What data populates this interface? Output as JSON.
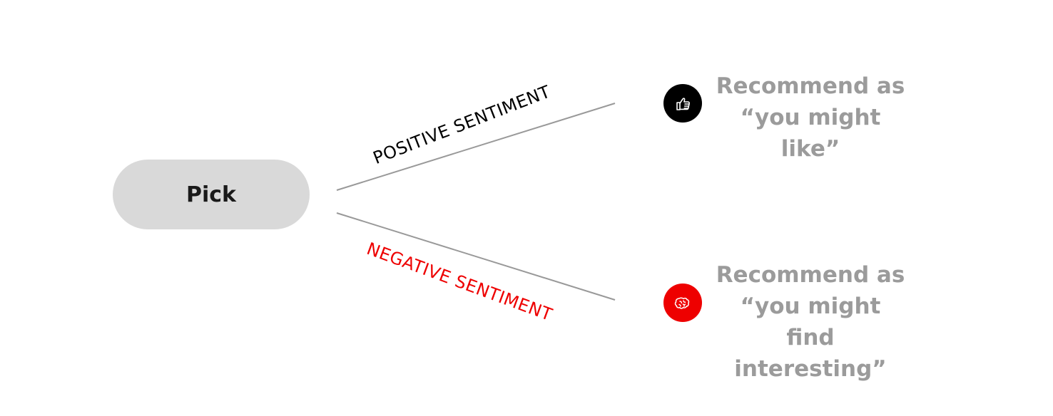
{
  "colors": {
    "pill_bg": "#d9d9d9",
    "pill_text": "#1a1a1a",
    "connector": "#999999",
    "positive": "#000000",
    "negative": "#ee0000",
    "outcome_text": "#9b9b9b",
    "badge_like": "#000000",
    "badge_interesting": "#ee0000",
    "icon_stroke": "#ffffff"
  },
  "source": {
    "label": "Pick"
  },
  "branches": {
    "positive": {
      "label": "POSITIVE SENTIMENT",
      "icon": "thumbs-up-icon",
      "outcome_lines": [
        "Recommend as",
        "“you might like”"
      ]
    },
    "negative": {
      "label": "NEGATIVE SENTIMENT",
      "icon": "brain-icon",
      "outcome_lines": [
        "Recommend as",
        "“you might find",
        "interesting”"
      ]
    }
  }
}
